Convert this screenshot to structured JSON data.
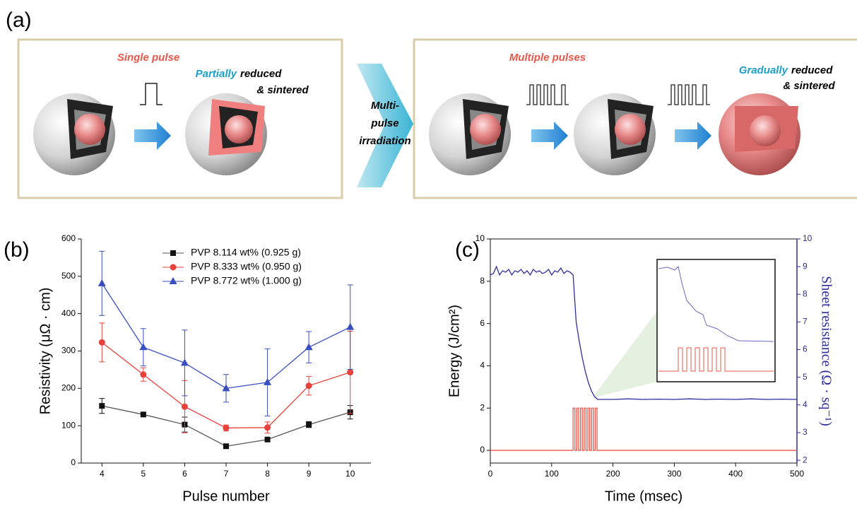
{
  "panel_a": {
    "label": "(a)",
    "single": {
      "title": "Single pulse",
      "result": [
        "Partially",
        "reduced",
        "& sintered"
      ]
    },
    "transition": [
      "Multi-",
      "pulse",
      "irradiation"
    ],
    "multiple": {
      "title": "Multiple pulses",
      "result": [
        "Gradually",
        "reduced",
        "& sintered"
      ]
    }
  },
  "chart_data": [
    {
      "type": "line",
      "label": "(b)",
      "x_label": "Pulse number",
      "y_label": "Resistivity (μΩ · cm)",
      "x": [
        4,
        5,
        6,
        7,
        8,
        9,
        10
      ],
      "xlim": [
        3.5,
        10.5
      ],
      "xticks": [
        4,
        5,
        6,
        7,
        8,
        9,
        10
      ],
      "ylim": [
        0,
        600
      ],
      "yticks": [
        0,
        100,
        200,
        300,
        400,
        500,
        600
      ],
      "legend": "upper center",
      "series": [
        {
          "name": "PVP  8.114 wt% (0.925 g)",
          "color": "#111111",
          "marker": "square",
          "line_color": "#555555",
          "values": [
            153,
            130,
            103,
            45,
            63,
            103,
            136
          ],
          "errors": [
            20,
            5,
            20,
            3,
            3,
            8,
            18
          ]
        },
        {
          "name": "PVP  8.333 wt% (0.950 g)",
          "color": "#e8403a",
          "marker": "circle",
          "line_color": "#e8403a",
          "values": [
            323,
            237,
            151,
            94,
            95,
            207,
            243
          ],
          "errors": [
            52,
            18,
            70,
            8,
            15,
            25,
            110
          ]
        },
        {
          "name": "PVP  8.772 wt% (1.000 g)",
          "color": "#3a4fbf",
          "marker": "triangle",
          "line_color": "#3a4fbf",
          "values": [
            481,
            310,
            268,
            200,
            216,
            310,
            364
          ],
          "errors": [
            86,
            50,
            88,
            37,
            90,
            42,
            113
          ]
        }
      ]
    },
    {
      "type": "line",
      "label": "(c)",
      "x_label": "Time  (msec)",
      "y_label": "Energy (J/cm²)",
      "y2_label": "Sheet resistance (Ω · sq⁻¹)",
      "xlim": [
        0,
        500
      ],
      "xticks": [
        0,
        100,
        200,
        300,
        400,
        500
      ],
      "ylim": [
        -0.6,
        10
      ],
      "yticks": [
        0,
        2,
        4,
        6,
        8,
        10
      ],
      "y2lim": [
        1.9,
        10
      ],
      "y2ticks": [
        2,
        3,
        4,
        5,
        6,
        7,
        8,
        9,
        10
      ],
      "series": [
        {
          "color": "#e8574a",
          "x": [
            0,
            135,
            135,
            138,
            138,
            141,
            141,
            144,
            144,
            147,
            147,
            150,
            150,
            153,
            153,
            156,
            156,
            159,
            159,
            162,
            162,
            165,
            165,
            168,
            168,
            171,
            171,
            174,
            174,
            500
          ],
          "values": [
            0,
            0,
            2,
            2,
            0,
            0,
            2,
            2,
            0,
            0,
            2,
            2,
            0,
            0,
            2,
            2,
            0,
            0,
            2,
            2,
            0,
            0,
            2,
            2,
            0,
            0,
            2,
            2,
            0,
            0
          ]
        },
        {
          "color": "#2e2e9e",
          "axis": "y2",
          "x": [
            0,
            5,
            10,
            15,
            20,
            25,
            30,
            35,
            40,
            45,
            50,
            55,
            60,
            65,
            70,
            75,
            80,
            85,
            90,
            95,
            100,
            105,
            110,
            115,
            120,
            125,
            130,
            135,
            140,
            145,
            150,
            155,
            160,
            165,
            170,
            175,
            200,
            225,
            250,
            275,
            300,
            325,
            350,
            375,
            400,
            425,
            450,
            475,
            500
          ],
          "values": [
            8.7,
            8.75,
            9.0,
            8.7,
            8.85,
            8.8,
            8.9,
            8.7,
            8.85,
            8.8,
            8.9,
            8.75,
            8.85,
            8.7,
            8.9,
            8.8,
            8.85,
            8.75,
            8.8,
            8.9,
            8.7,
            8.85,
            8.8,
            8.95,
            8.75,
            8.85,
            8.8,
            8.7,
            7.0,
            6.3,
            5.7,
            5.2,
            4.8,
            4.5,
            4.3,
            4.2,
            4.2,
            4.22,
            4.2,
            4.21,
            4.2,
            4.22,
            4.2,
            4.21,
            4.2,
            4.22,
            4.2,
            4.21,
            4.2
          ]
        }
      ]
    }
  ]
}
